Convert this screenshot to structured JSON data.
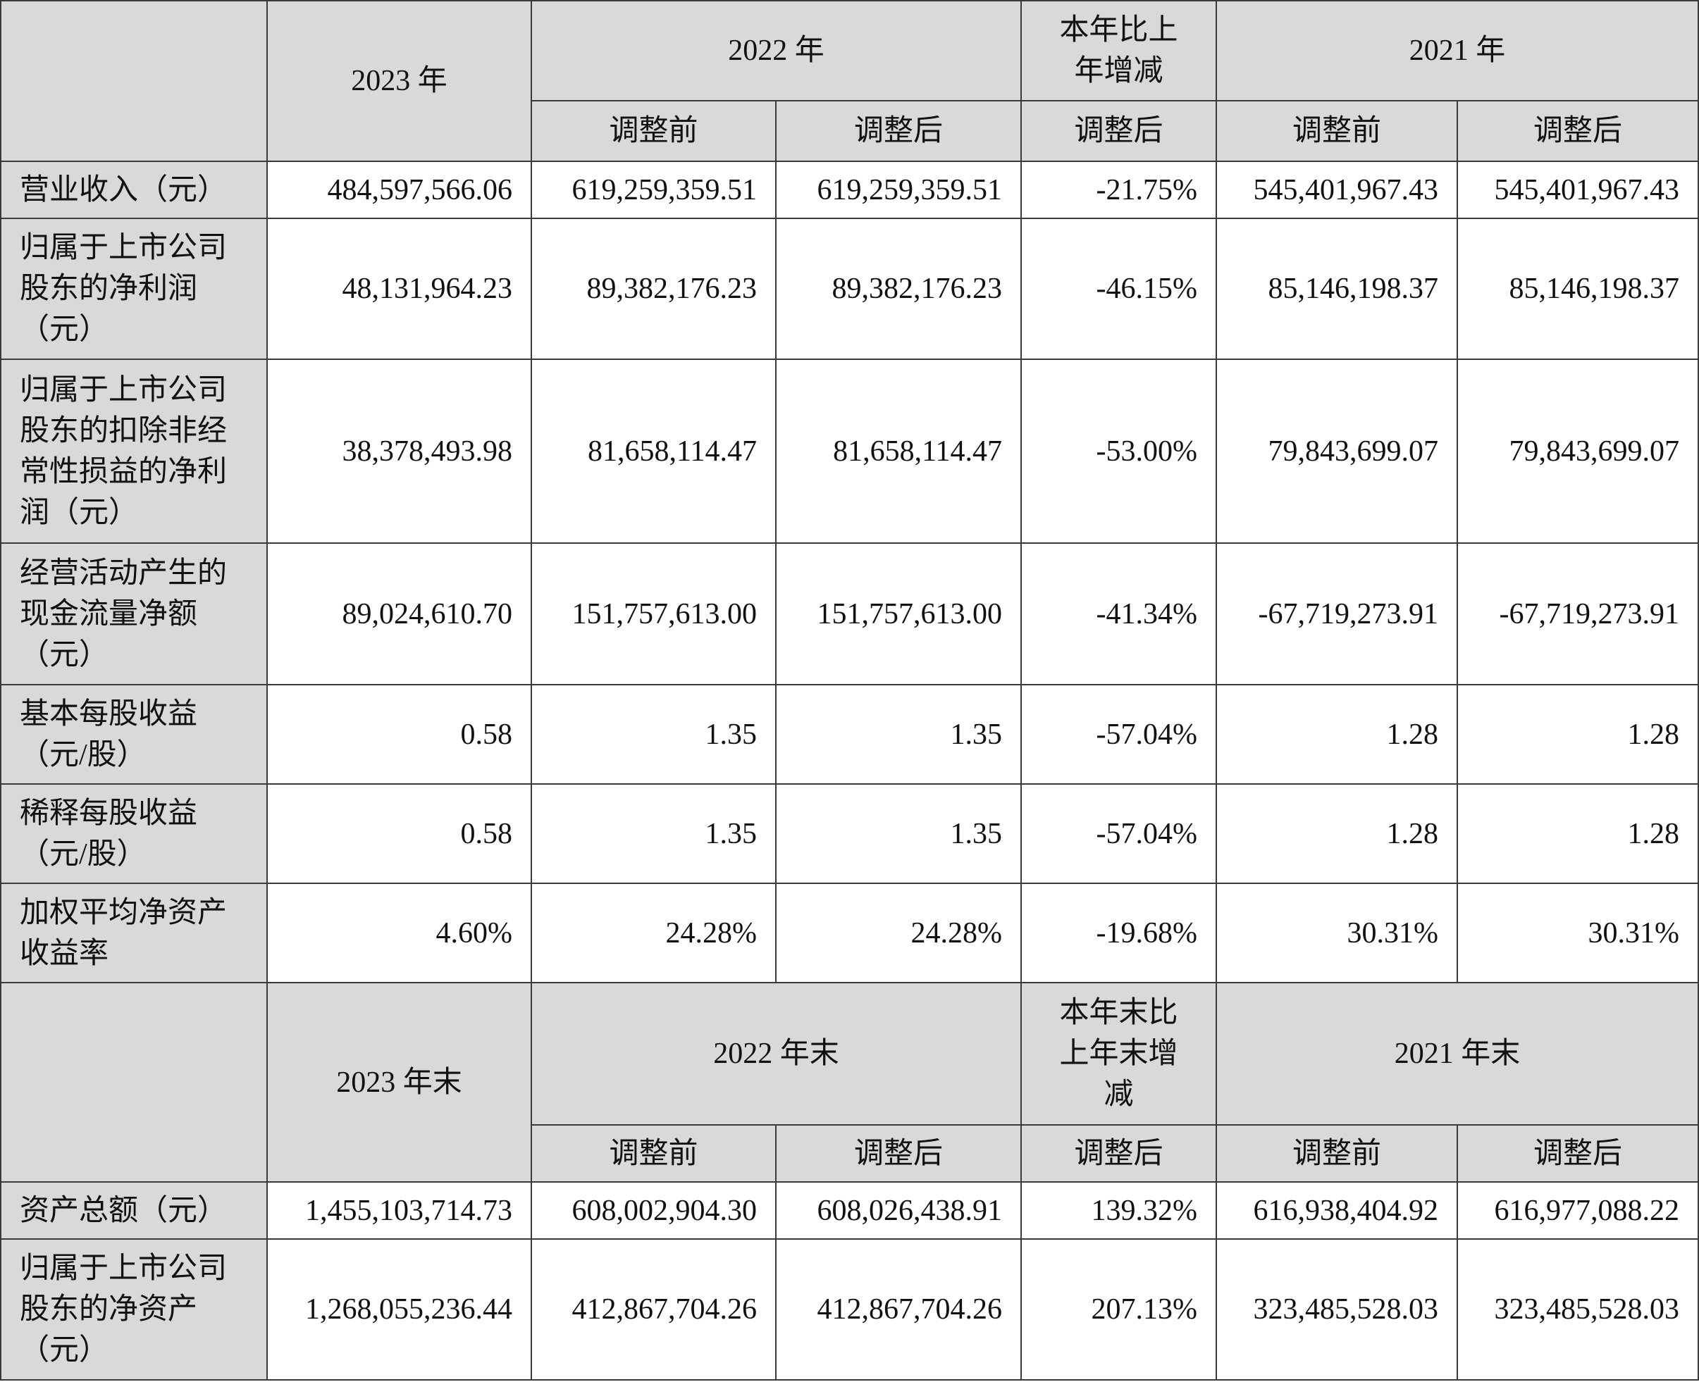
{
  "section1": {
    "head": {
      "y2023": "2023 年",
      "y2022": "2022 年",
      "change": "本年比上\n年增减",
      "y2021": "2021 年",
      "sub": [
        "调整前",
        "调整后",
        "调整后",
        "调整前",
        "调整后"
      ]
    },
    "rows": [
      {
        "label": "营业收入（元）",
        "values": [
          "484,597,566.06",
          "619,259,359.51",
          "619,259,359.51",
          "-21.75%",
          "545,401,967.43",
          "545,401,967.43"
        ]
      },
      {
        "label": "归属于上市公司\n股东的净利润\n（元）",
        "values": [
          "48,131,964.23",
          "89,382,176.23",
          "89,382,176.23",
          "-46.15%",
          "85,146,198.37",
          "85,146,198.37"
        ]
      },
      {
        "label": "归属于上市公司\n股东的扣除非经\n常性损益的净利\n润（元）",
        "values": [
          "38,378,493.98",
          "81,658,114.47",
          "81,658,114.47",
          "-53.00%",
          "79,843,699.07",
          "79,843,699.07"
        ]
      },
      {
        "label": "经营活动产生的\n现金流量净额\n（元）",
        "values": [
          "89,024,610.70",
          "151,757,613.00",
          "151,757,613.00",
          "-41.34%",
          "-67,719,273.91",
          "-67,719,273.91"
        ]
      },
      {
        "label": "基本每股收益\n（元/股）",
        "values": [
          "0.58",
          "1.35",
          "1.35",
          "-57.04%",
          "1.28",
          "1.28"
        ]
      },
      {
        "label": "稀释每股收益\n（元/股）",
        "values": [
          "0.58",
          "1.35",
          "1.35",
          "-57.04%",
          "1.28",
          "1.28"
        ]
      },
      {
        "label": "加权平均净资产\n收益率",
        "values": [
          "4.60%",
          "24.28%",
          "24.28%",
          "-19.68%",
          "30.31%",
          "30.31%"
        ]
      }
    ]
  },
  "section2": {
    "head": {
      "y2023": "2023 年末",
      "y2022": "2022 年末",
      "change": "本年末比\n上年末增\n减",
      "y2021": "2021 年末",
      "sub": [
        "调整前",
        "调整后",
        "调整后",
        "调整前",
        "调整后"
      ]
    },
    "rows": [
      {
        "label": "资产总额（元）",
        "values": [
          "1,455,103,714.73",
          "608,002,904.30",
          "608,026,438.91",
          "139.32%",
          "616,938,404.92",
          "616,977,088.22"
        ]
      },
      {
        "label": "归属于上市公司\n股东的净资产\n（元）",
        "values": [
          "1,268,055,236.44",
          "412,867,704.26",
          "412,867,704.26",
          "207.13%",
          "323,485,528.03",
          "323,485,528.03"
        ]
      }
    ]
  }
}
